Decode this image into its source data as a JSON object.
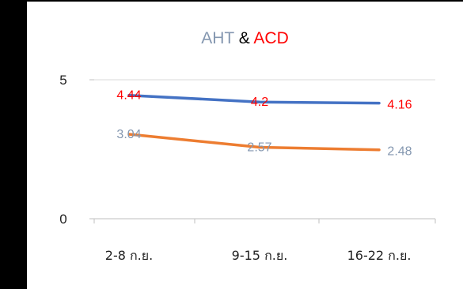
{
  "title_parts": [
    {
      "text": "AHT",
      "color": "#8497B0"
    },
    {
      "text": " & ",
      "color": "#000000"
    },
    {
      "text": "ACD",
      "color": "#FF0000"
    }
  ],
  "chart_data": {
    "type": "line",
    "categories": [
      "2-8 ก.ย.",
      "9-15 ก.ย.",
      "16-22 ก.ย."
    ],
    "series": [
      {
        "values": [
          4.44,
          4.2,
          4.16
        ],
        "color": "#4472C4",
        "label_color": "#FF0000",
        "labels": [
          "4.44",
          "4.2",
          "4.16"
        ]
      },
      {
        "values": [
          3.04,
          2.57,
          2.48
        ],
        "color": "#ED7D31",
        "label_color": "#8497B0",
        "labels": [
          "3.04",
          "2.57",
          "2.48"
        ]
      }
    ],
    "ylim": [
      0,
      5
    ],
    "yticks": [
      "0",
      "5"
    ],
    "grid": true
  }
}
